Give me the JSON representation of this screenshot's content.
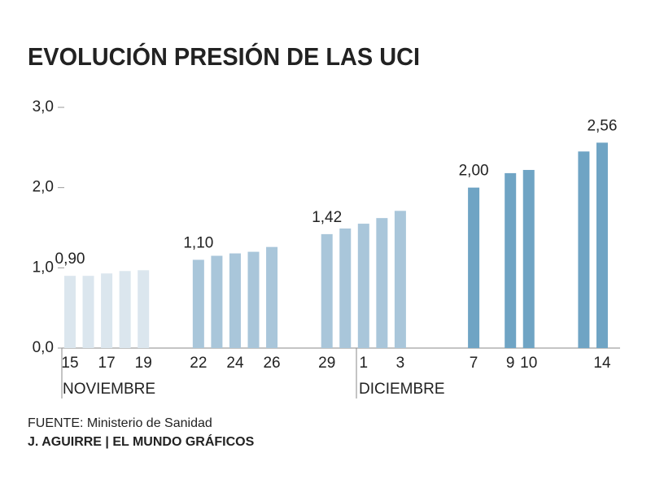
{
  "chart_data": {
    "type": "bar",
    "title": "EVOLUCIÓN PRESIÓN DE LAS UCI",
    "categories": [
      "15",
      null,
      "17",
      null,
      "19",
      null,
      null,
      "22",
      null,
      "24",
      null,
      "26",
      null,
      null,
      "29",
      null,
      "1",
      null,
      "3",
      null,
      null,
      null,
      "7",
      null,
      "9",
      "10",
      null,
      null,
      null,
      "14"
    ],
    "values": [
      0.9,
      0.9,
      0.93,
      0.96,
      0.97,
      null,
      null,
      1.1,
      1.15,
      1.18,
      1.2,
      1.26,
      null,
      null,
      1.42,
      1.49,
      1.55,
      1.62,
      1.71,
      null,
      null,
      null,
      2.0,
      null,
      2.18,
      2.22,
      null,
      null,
      2.45,
      2.56
    ],
    "value_labels": [
      "0,90",
      null,
      null,
      null,
      null,
      null,
      null,
      "1,10",
      null,
      null,
      null,
      null,
      null,
      null,
      "1,42",
      null,
      null,
      null,
      null,
      null,
      null,
      null,
      "2,00",
      null,
      null,
      null,
      null,
      null,
      null,
      "2,56"
    ],
    "colors": [
      "#dbe6ee",
      "#dbe6ee",
      "#dbe6ee",
      "#dbe6ee",
      "#dbe6ee",
      null,
      null,
      "#a9c6da",
      "#a9c6da",
      "#a9c6da",
      "#a9c6da",
      "#a9c6da",
      null,
      null,
      "#a9c6da",
      "#a9c6da",
      "#a9c6da",
      "#a9c6da",
      "#a9c6da",
      null,
      null,
      null,
      "#6fa4c4",
      null,
      "#6fa4c4",
      "#6fa4c4",
      null,
      null,
      "#6fa4c4",
      "#6fa4c4"
    ],
    "month_labels": [
      "NOVIEMBRE",
      "DICIEMBRE"
    ],
    "ylim": [
      0,
      3
    ],
    "yticks": [
      {
        "value": 0,
        "label": "0,0"
      },
      {
        "value": 1,
        "label": "1,0"
      },
      {
        "value": 2,
        "label": "2,0"
      },
      {
        "value": 3,
        "label": "3,0"
      }
    ],
    "source": "FUENTE: Ministerio de Sanidad",
    "credit": "J. AGUIRRE | EL MUNDO GRÁFICOS"
  }
}
